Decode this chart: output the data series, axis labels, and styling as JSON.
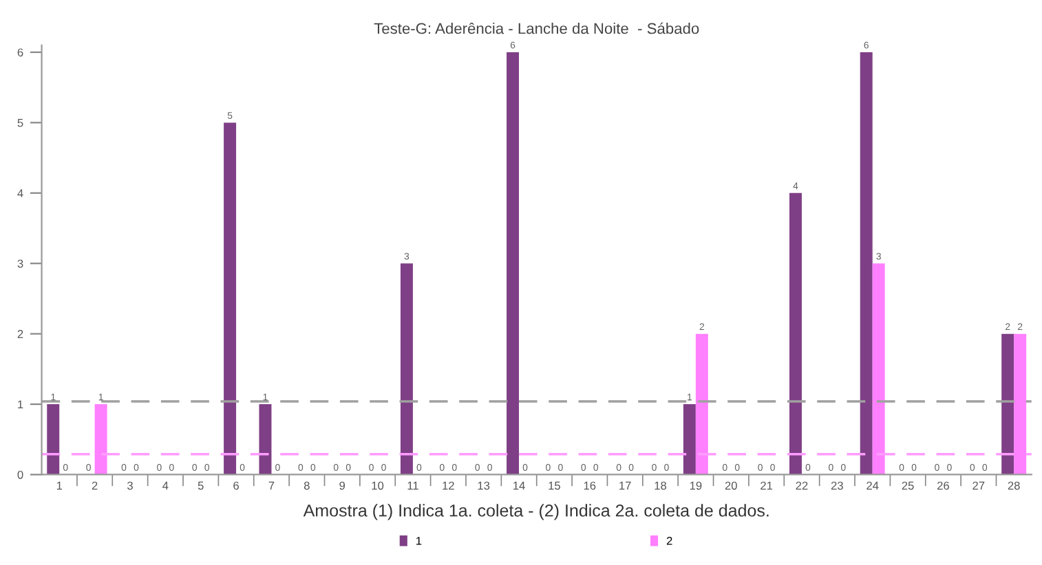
{
  "chart_data": {
    "type": "bar",
    "title": "Teste-G: Aderência - Lanche da Noite  - Sábado",
    "xlabel": "Amostra (1) Indica 1a. coleta - (2) Indica 2a. coleta de dados.",
    "categories": [
      "1",
      "2",
      "3",
      "4",
      "5",
      "6",
      "7",
      "8",
      "9",
      "10",
      "11",
      "12",
      "13",
      "14",
      "15",
      "16",
      "17",
      "18",
      "19",
      "20",
      "21",
      "22",
      "23",
      "24",
      "25",
      "26",
      "27",
      "28"
    ],
    "series": [
      {
        "name": "1",
        "color": "#7f3f86",
        "values": [
          1,
          0,
          0,
          0,
          0,
          5,
          1,
          0,
          0,
          0,
          3,
          0,
          0,
          6,
          0,
          0,
          0,
          0,
          1,
          0,
          0,
          4,
          0,
          6,
          0,
          0,
          0,
          2
        ]
      },
      {
        "name": "2",
        "color": "#ff80ff",
        "values": [
          0,
          1,
          0,
          0,
          0,
          0,
          0,
          0,
          0,
          0,
          0,
          0,
          0,
          0,
          0,
          0,
          0,
          0,
          2,
          0,
          0,
          0,
          0,
          3,
          0,
          0,
          0,
          2
        ]
      }
    ],
    "ylim": [
      0,
      6.1
    ],
    "yticks": [
      0,
      1,
      2,
      3,
      4,
      5,
      6
    ],
    "ref_lines": [
      {
        "axis": "y",
        "value": 1.04,
        "color": "#a0a0a0",
        "line_style": "dashed"
      },
      {
        "axis": "y",
        "value": 0.29,
        "color": "#ff9cff",
        "line_style": "dashed"
      }
    ],
    "data_labels": true,
    "grid": false,
    "legend": "bottom"
  }
}
